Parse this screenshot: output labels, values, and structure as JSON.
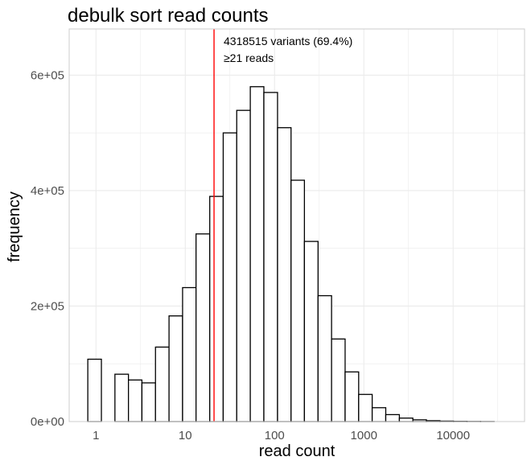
{
  "chart_data": {
    "type": "bar",
    "title": "debulk sort read counts",
    "xlabel": "read count",
    "ylabel": "frequency",
    "x_scale": "log10",
    "grid": true,
    "x_ticks": [
      {
        "value": 1,
        "label": "1"
      },
      {
        "value": 10,
        "label": "10"
      },
      {
        "value": 100,
        "label": "100"
      },
      {
        "value": 1000,
        "label": "1000"
      },
      {
        "value": 10000,
        "label": "10000"
      }
    ],
    "y_ticks": [
      {
        "value": 0,
        "label": "0e+00"
      },
      {
        "value": 200000,
        "label": "2e+05"
      },
      {
        "value": 400000,
        "label": "4e+05"
      },
      {
        "value": 600000,
        "label": "6e+05"
      }
    ],
    "ylim": [
      0,
      680000
    ],
    "xlim_log10": [
      -0.3,
      4.8
    ],
    "bins": [
      {
        "x_from": 0.81,
        "x_to": 1.15,
        "count": 108000
      },
      {
        "x_from": 1.15,
        "x_to": 1.63,
        "count": 0
      },
      {
        "x_from": 1.63,
        "x_to": 2.31,
        "count": 82000
      },
      {
        "x_from": 2.31,
        "x_to": 3.27,
        "count": 72000
      },
      {
        "x_from": 3.27,
        "x_to": 4.64,
        "count": 67000
      },
      {
        "x_from": 4.64,
        "x_to": 6.58,
        "count": 129000
      },
      {
        "x_from": 6.58,
        "x_to": 9.33,
        "count": 183000
      },
      {
        "x_from": 9.33,
        "x_to": 13.2,
        "count": 232000
      },
      {
        "x_from": 13.2,
        "x_to": 18.8,
        "count": 325000
      },
      {
        "x_from": 18.8,
        "x_to": 26.6,
        "count": 390000
      },
      {
        "x_from": 26.6,
        "x_to": 37.7,
        "count": 500000
      },
      {
        "x_from": 37.7,
        "x_to": 53.5,
        "count": 539000
      },
      {
        "x_from": 53.5,
        "x_to": 75.9,
        "count": 580000
      },
      {
        "x_from": 75.9,
        "x_to": 108,
        "count": 570000
      },
      {
        "x_from": 108,
        "x_to": 153,
        "count": 509000
      },
      {
        "x_from": 153,
        "x_to": 216,
        "count": 418000
      },
      {
        "x_from": 216,
        "x_to": 307,
        "count": 312000
      },
      {
        "x_from": 307,
        "x_to": 435,
        "count": 218000
      },
      {
        "x_from": 435,
        "x_to": 617,
        "count": 143000
      },
      {
        "x_from": 617,
        "x_to": 875,
        "count": 86000
      },
      {
        "x_from": 875,
        "x_to": 1240,
        "count": 47000
      },
      {
        "x_from": 1240,
        "x_to": 1760,
        "count": 24000
      },
      {
        "x_from": 1760,
        "x_to": 2500,
        "count": 12000
      },
      {
        "x_from": 2500,
        "x_to": 3540,
        "count": 6000
      },
      {
        "x_from": 3540,
        "x_to": 5020,
        "count": 3000
      },
      {
        "x_from": 5020,
        "x_to": 7120,
        "count": 1500
      },
      {
        "x_from": 7120,
        "x_to": 10100,
        "count": 800
      },
      {
        "x_from": 10100,
        "x_to": 14300,
        "count": 400
      },
      {
        "x_from": 14300,
        "x_to": 20300,
        "count": 200
      },
      {
        "x_from": 20300,
        "x_to": 28800,
        "count": 100
      }
    ],
    "threshold": {
      "value": 21,
      "color": "#ff0000"
    },
    "annotation": {
      "line1": "4318515 variants (69.4%)",
      "line2": "≥21 reads"
    },
    "colors": {
      "bar_fill": "#ffffff",
      "bar_stroke": "#000000",
      "grid": "#ebebeb",
      "panel_border": "#cccccc"
    }
  }
}
